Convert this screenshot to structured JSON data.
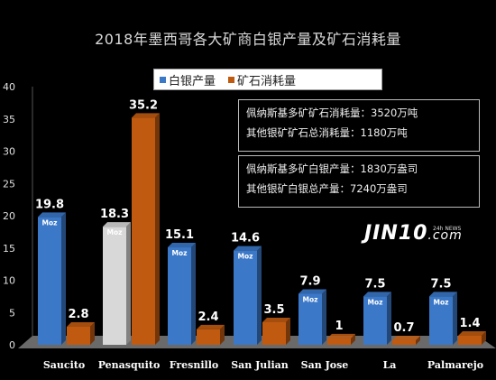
{
  "title": "2018年墨西哥各大矿商白银产量及矿石消耗量",
  "legend": {
    "silver_label": "白银产量",
    "ore_label": "矿石消耗量"
  },
  "colors": {
    "silver": "#3b78c8",
    "silver_highlight": "#d8d8d8",
    "ore": "#c05a10",
    "background": "#000000",
    "floor": "#6a6a6a"
  },
  "notes": {
    "line1": "佩纳斯基多矿矿石消耗量：3520万吨",
    "line2": "其他银矿矿石总消耗量：1180万吨",
    "line3": "佩纳斯基多矿白银产量：1830万盎司",
    "line4": "其他银矿白银总产量：7240万盎司"
  },
  "logo": {
    "text": "JIN10",
    "suffix": ".com",
    "sub": "24h NEWS"
  },
  "unit_tag": "Moz",
  "chart_data": {
    "type": "bar",
    "categories": [
      "Saucito",
      "Penasquito",
      "Fresnillo",
      "San Julian",
      "San Jose",
      "La",
      "Palmarejo"
    ],
    "series": [
      {
        "name": "白银产量",
        "values": [
          19.8,
          18.3,
          15.1,
          14.6,
          7.9,
          7.5,
          7.5
        ]
      },
      {
        "name": "矿石消耗量",
        "values": [
          2.8,
          35.2,
          2.4,
          3.5,
          1,
          0.7,
          1.4
        ]
      }
    ],
    "highlight_index": 1,
    "ylim": [
      0,
      40
    ],
    "yticks": [
      0,
      5,
      10,
      15,
      20,
      25,
      30,
      35,
      40
    ],
    "legend_position": "top-center"
  }
}
